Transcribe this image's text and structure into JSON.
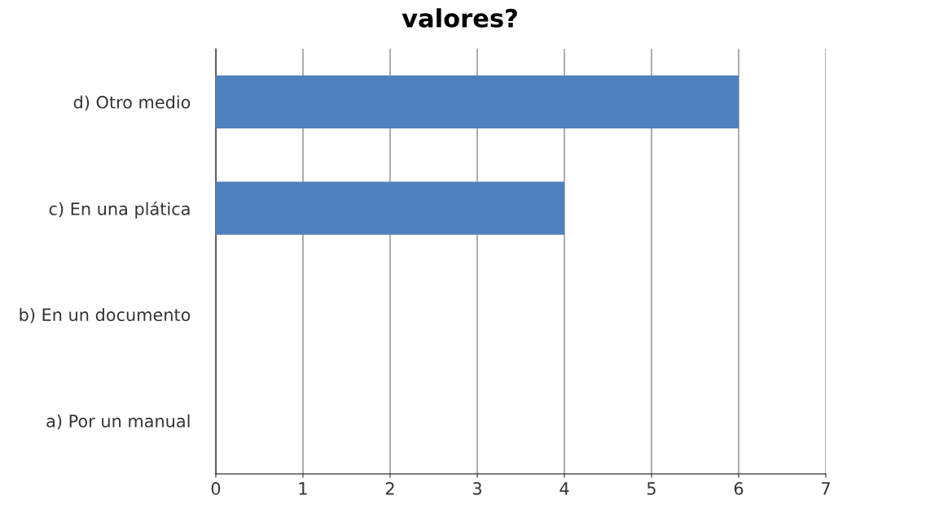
{
  "chart_data": {
    "type": "bar",
    "orientation": "horizontal",
    "title": "valores?",
    "categories": [
      "d) Otro medio",
      "c) En una plática",
      "b) En un documento",
      "a) Por un manual"
    ],
    "values": [
      6,
      4,
      0,
      0
    ],
    "color": "#4f81bd",
    "xlim": [
      0,
      7
    ],
    "xticks": [
      0,
      1,
      2,
      3,
      4,
      5,
      6,
      7
    ],
    "grid": "x",
    "legend": false
  }
}
